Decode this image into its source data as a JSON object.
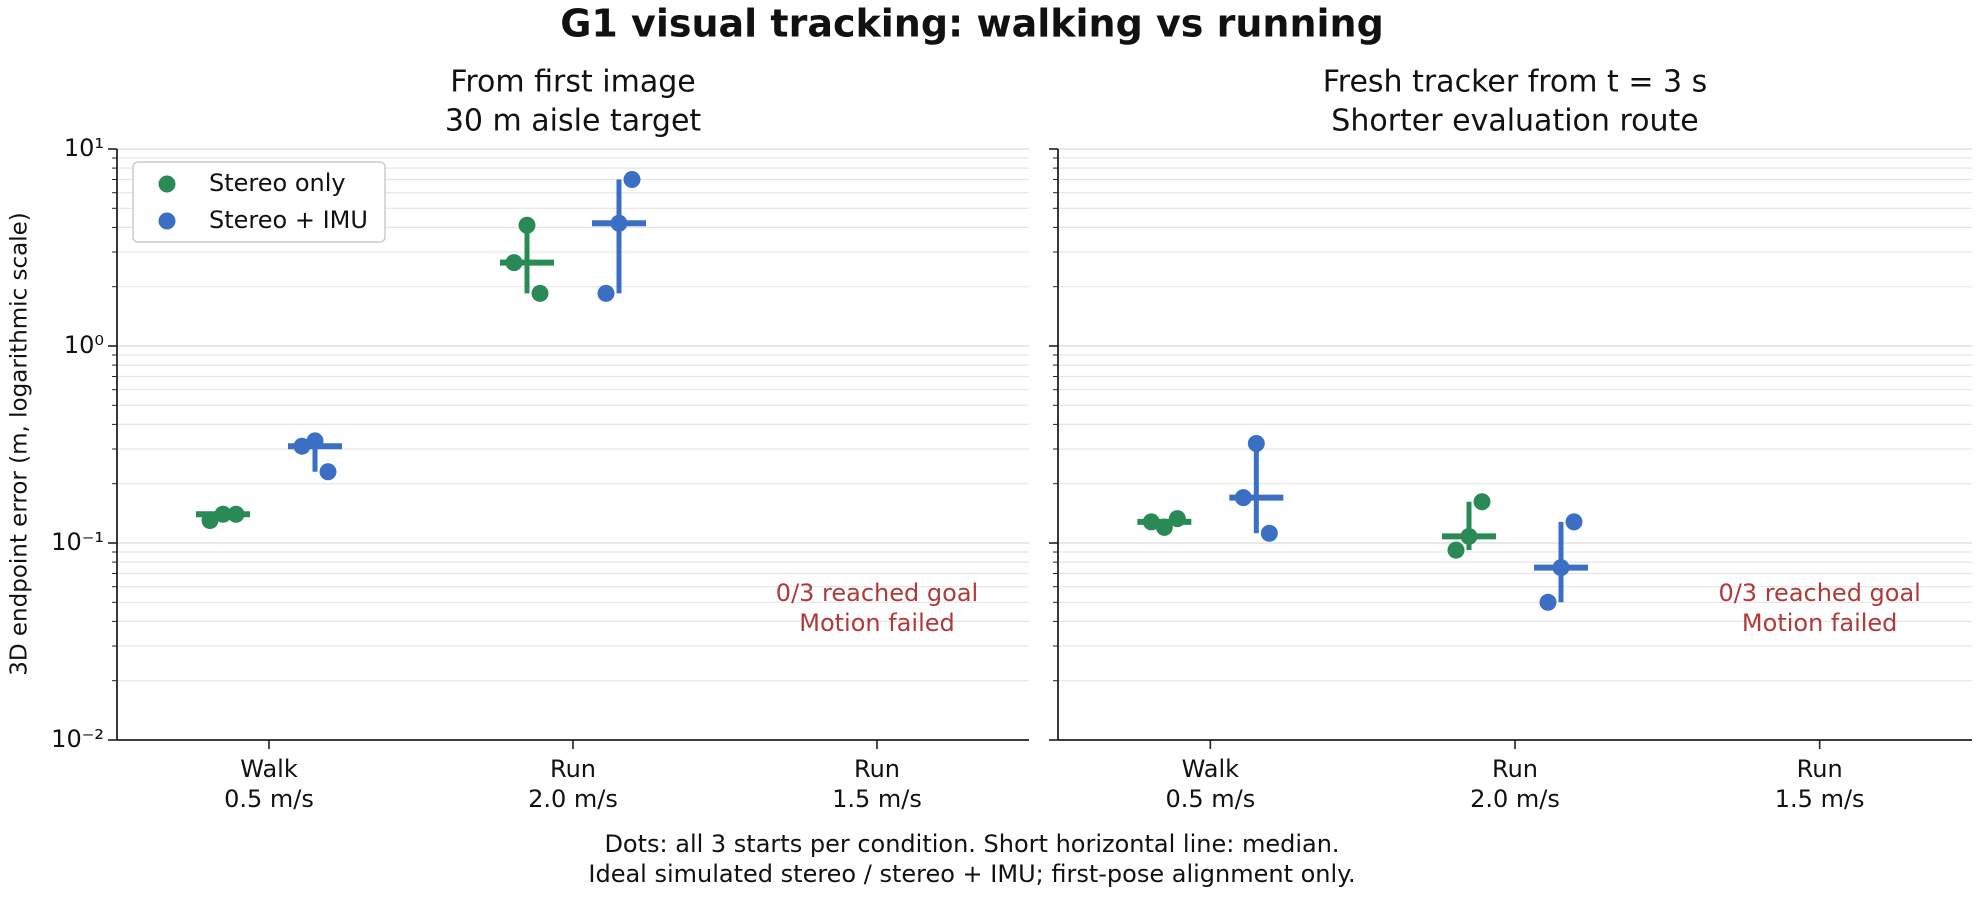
{
  "title": "G1 visual tracking: walking vs running",
  "y_label": "3D endpoint error (m, logarithmic scale)",
  "note": [
    "Dots: all 3 starts per condition. Short horizontal line: median.",
    "Ideal simulated stereo / stereo + IMU; first-pose alignment only."
  ],
  "chart_data": [
    {
      "type": "strip",
      "title": [
        "From first image",
        "30 m aisle target"
      ],
      "categories": [
        [
          "Walk",
          "0.5 m/s"
        ],
        [
          "Run",
          "2.0 m/s"
        ],
        [
          "Run",
          "1.5 m/s"
        ]
      ],
      "series": [
        {
          "name": "Stereo only",
          "color": "#2a8a55",
          "values": [
            [
              0.13,
              0.14,
              0.14
            ],
            [
              2.65,
              4.1,
              1.85
            ],
            null
          ],
          "medians": [
            0.14,
            2.65,
            null
          ]
        },
        {
          "name": "Stereo + IMU",
          "color": "#3a6fc4",
          "values": [
            [
              0.31,
              0.33,
              0.23
            ],
            [
              1.85,
              4.2,
              7.0
            ],
            null
          ],
          "medians": [
            0.31,
            4.2,
            null
          ]
        }
      ],
      "annotation": [
        "0/3 reached goal",
        "Motion failed"
      ],
      "log_y": true,
      "ylim": [
        0.01,
        10
      ],
      "yticks": [
        {
          "value": 0.01,
          "label": "10⁻²"
        },
        {
          "value": 0.1,
          "label": "10⁻¹"
        },
        {
          "value": 1,
          "label": "10⁰"
        },
        {
          "value": 10,
          "label": "10¹"
        }
      ],
      "minor_yticks": [
        0.02,
        0.03,
        0.04,
        0.05,
        0.06,
        0.07,
        0.08,
        0.09,
        0.2,
        0.3,
        0.4,
        0.5,
        0.6,
        0.7,
        0.8,
        0.9,
        2,
        3,
        4,
        5,
        6,
        7,
        8,
        9
      ],
      "grid": true,
      "legend": "upper left"
    },
    {
      "type": "strip",
      "title": [
        "Fresh tracker from t = 3 s",
        "Shorter evaluation route"
      ],
      "categories": [
        [
          "Walk",
          "0.5 m/s"
        ],
        [
          "Run",
          "2.0 m/s"
        ],
        [
          "Run",
          "1.5 m/s"
        ]
      ],
      "series": [
        {
          "color": "#2a8a55",
          "values": [
            [
              0.128,
              0.12,
              0.133
            ],
            [
              0.092,
              0.108,
              0.162
            ],
            null
          ],
          "medians": [
            0.128,
            0.108,
            null
          ]
        },
        {
          "color": "#3a6fc4",
          "values": [
            [
              0.17,
              0.32,
              0.112
            ],
            [
              0.05,
              0.075,
              0.128
            ],
            null
          ],
          "medians": [
            0.17,
            0.075,
            null
          ]
        }
      ],
      "annotation": [
        "0/3 reached goal",
        "Motion failed"
      ],
      "log_y": true,
      "ylim": [
        0.01,
        10
      ],
      "yticks": [
        0.01,
        0.1,
        1,
        10
      ],
      "minor_yticks": [
        0.02,
        0.03,
        0.04,
        0.05,
        0.06,
        0.07,
        0.08,
        0.09,
        0.2,
        0.3,
        0.4,
        0.5,
        0.6,
        0.7,
        0.8,
        0.9,
        2,
        3,
        4,
        5,
        6,
        7,
        8,
        9
      ],
      "grid": true
    }
  ]
}
